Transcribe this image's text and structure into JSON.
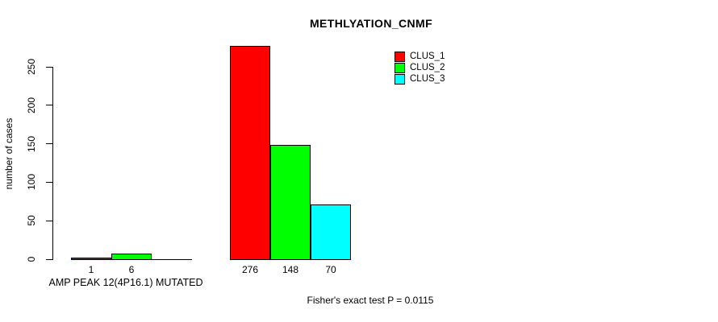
{
  "chart_data": {
    "type": "bar",
    "title": "METHLYATION_CNMF",
    "ylabel": "number of cases",
    "xlabel": "AMP PEAK 12(4P16.1) MUTATED",
    "annotation": "Fisher's exact test P = 0.0115",
    "ylim": [
      0,
      276
    ],
    "yticks": [
      0,
      50,
      100,
      150,
      200,
      250
    ],
    "grid": false,
    "legend_position": "top-right",
    "categories": [
      "AMP PEAK 12(4P16.1) MUTATED",
      ""
    ],
    "series": [
      {
        "name": "CLUS_1",
        "color": "#ff0000",
        "values": [
          1,
          276
        ]
      },
      {
        "name": "CLUS_2",
        "color": "#00ff00",
        "values": [
          6,
          148
        ]
      },
      {
        "name": "CLUS_3",
        "color": "#00ffff",
        "values": [
          0,
          70
        ]
      }
    ],
    "bar_labels": [
      [
        "1",
        "6",
        ""
      ],
      [
        "276",
        "148",
        "70"
      ]
    ]
  },
  "colors": {
    "background": "#ffffff",
    "axis": "#000000",
    "clus_1": "#ff0000",
    "clus_2": "#00ff00",
    "clus_3": "#00ffff"
  }
}
